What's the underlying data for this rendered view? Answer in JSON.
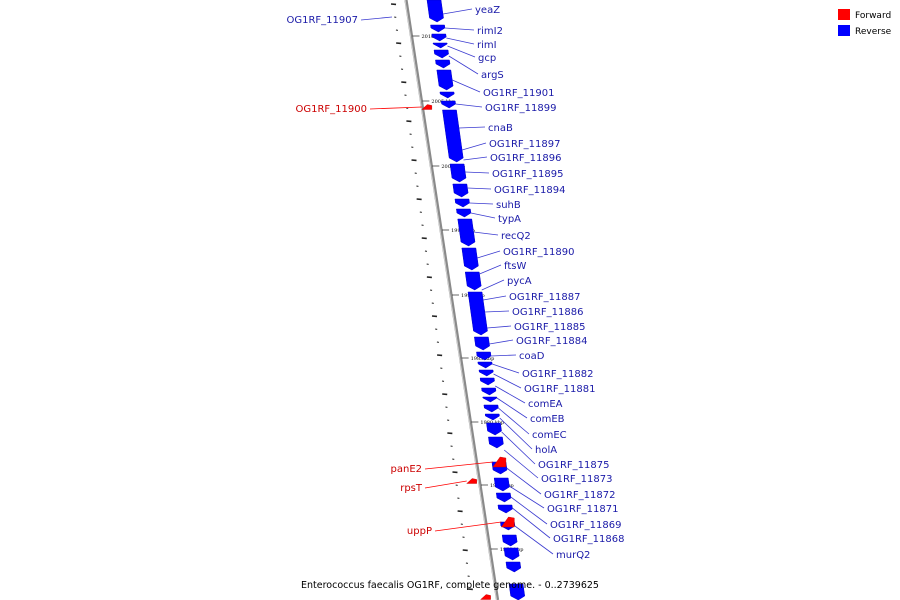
{
  "caption": "Enterococcus faecalis OG1RF, complete genome. - 0..2739625",
  "colors": {
    "forward": "#ff0000",
    "reverse": "#0000ff",
    "forward_label": "#cc0000",
    "reverse_label": "#1a1aa8",
    "backbone": "#8a8a8a",
    "leader": "#3b3bd0"
  },
  "legend": [
    {
      "label": "Forward",
      "strand": "forward"
    },
    {
      "label": "Reverse",
      "strand": "reverse"
    }
  ],
  "axis_ticks": [
    "2010 kbp",
    "2005 kbp",
    "2000 kbp",
    "1995 kbp",
    "1990 kbp",
    "1985 kbp",
    "1980 kbp",
    "1975 kbp",
    "1970 kbp"
  ],
  "reverse_genes": [
    "yeaZ",
    "rimI2",
    "rimI",
    "gcp",
    "argS",
    "OG1RF_11901",
    "OG1RF_11899",
    "cnaB",
    "OG1RF_11897",
    "OG1RF_11896",
    "OG1RF_11895",
    "OG1RF_11894",
    "suhB",
    "typA",
    "recQ2",
    "OG1RF_11890",
    "ftsW",
    "pycA",
    "OG1RF_11887",
    "OG1RF_11886",
    "OG1RF_11885",
    "OG1RF_11884",
    "coaD",
    "OG1RF_11882",
    "OG1RF_11881",
    "comEA",
    "comEB",
    "comEC",
    "holA",
    "OG1RF_11875",
    "OG1RF_11873",
    "OG1RF_11872",
    "OG1RF_11871",
    "OG1RF_11869",
    "OG1RF_11868",
    "murQ2"
  ],
  "forward_genes": [
    "OG1RF_11900",
    "panE2",
    "rpsT",
    "uppP"
  ],
  "left_reverse_genes": [
    "OG1RF_11907"
  ]
}
